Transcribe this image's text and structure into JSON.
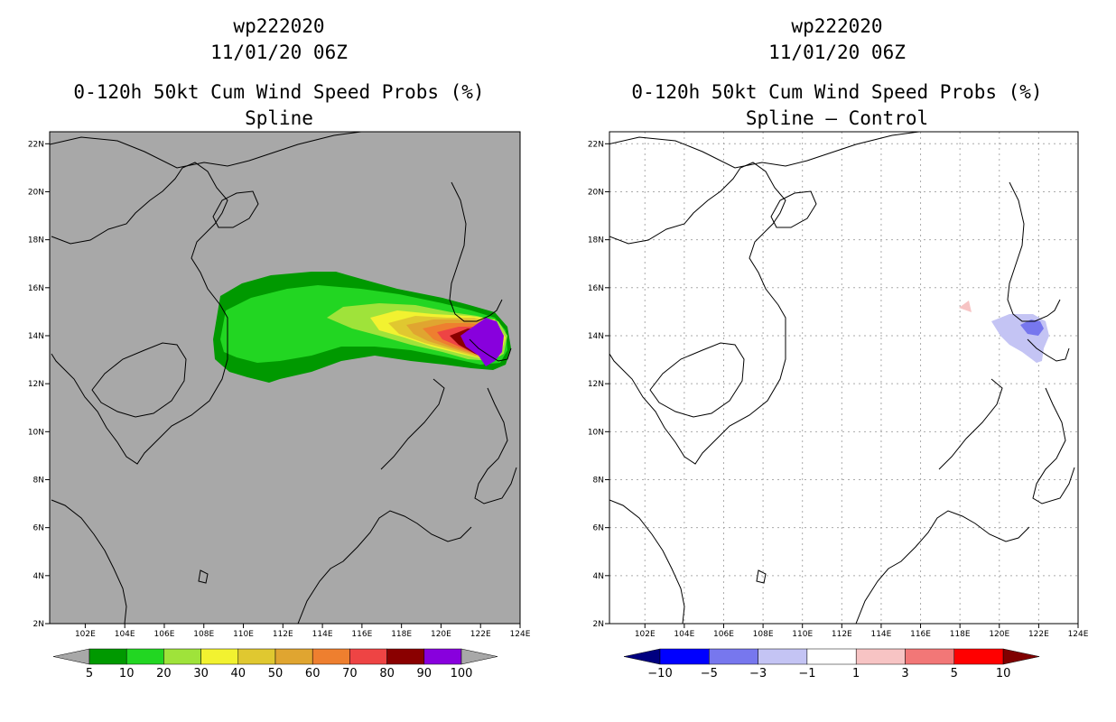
{
  "panels": [
    {
      "id": "wp222020",
      "title_line1": "wp222020",
      "title_line2": "11/01/20 06Z",
      "title_line3": "0-120h 50kt Cum Wind Speed Probs (%)",
      "title_line4": "Spline",
      "map_background": "#a8a8a8",
      "colorbar": {
        "colors": [
          "#009900",
          "#22d622",
          "#9fe33a",
          "#f2f230",
          "#e0c830",
          "#e0a530",
          "#ee7f2f",
          "#ee4444",
          "#8a0000",
          "#8800dd"
        ],
        "under_color": "#a8a8a8",
        "over_color": "#a8a8a8",
        "labels": [
          "5",
          "10",
          "20",
          "30",
          "40",
          "50",
          "60",
          "70",
          "80",
          "90",
          "100"
        ]
      }
    },
    {
      "id": "wp222020",
      "title_line1": "wp222020",
      "title_line2": "11/01/20 06Z",
      "title_line3": "0-120h 50kt Cum Wind Speed Probs (%)",
      "title_line4": "Spline – Control",
      "map_background": "#ffffff",
      "colorbar": {
        "colors": [
          "#0000ff",
          "#7777ee",
          "#c4c4f4",
          "#ffffff",
          "#f7c4c4",
          "#f27777",
          "#ff0000"
        ],
        "under_color": "#000080",
        "over_color": "#800000",
        "labels": [
          "-10",
          "-5",
          "-3",
          "-1",
          "1",
          "3",
          "5",
          "10"
        ]
      }
    }
  ],
  "axes": {
    "lon_ticks": [
      "102E",
      "104E",
      "106E",
      "108E",
      "110E",
      "112E",
      "114E",
      "116E",
      "118E",
      "120E",
      "122E",
      "124E"
    ],
    "lat_ticks": [
      "2N",
      "4N",
      "6N",
      "8N",
      "10N",
      "12N",
      "14N",
      "16N",
      "18N",
      "20N",
      "22N"
    ],
    "lon_range": [
      100.2,
      124
    ],
    "lat_range": [
      2,
      22.5
    ]
  }
}
